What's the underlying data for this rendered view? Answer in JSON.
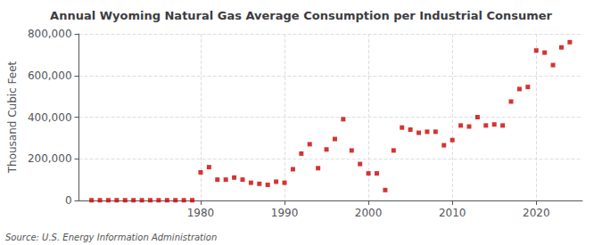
{
  "chart_data": {
    "type": "scatter",
    "title": "Annual Wyoming Natural Gas Average Consumption per Industrial Consumer",
    "ylabel": "Thousand Cubic Feet",
    "annotation": "Source: U.S. Energy Information Administration",
    "x": [
      1967,
      1968,
      1969,
      1970,
      1971,
      1972,
      1973,
      1974,
      1975,
      1976,
      1977,
      1978,
      1979,
      1980,
      1981,
      1982,
      1983,
      1984,
      1985,
      1986,
      1987,
      1988,
      1989,
      1990,
      1991,
      1992,
      1993,
      1994,
      1995,
      1996,
      1997,
      1998,
      1999,
      2000,
      2001,
      2002,
      2003,
      2004,
      2005,
      2006,
      2007,
      2008,
      2009,
      2010,
      2011,
      2012,
      2013,
      2014,
      2015,
      2016,
      2017,
      2018,
      2019,
      2020,
      2021,
      2022,
      2023,
      2024
    ],
    "values": [
      1000,
      1000,
      1000,
      1000,
      1000,
      1000,
      1000,
      1000,
      1000,
      1000,
      1000,
      1000,
      1000,
      135000,
      160000,
      100000,
      100000,
      110000,
      100000,
      85000,
      80000,
      75000,
      90000,
      85000,
      150000,
      225000,
      270000,
      155000,
      245000,
      295000,
      390000,
      240000,
      175000,
      130000,
      130000,
      50000,
      240000,
      350000,
      340000,
      325000,
      330000,
      330000,
      265000,
      290000,
      360000,
      355000,
      400000,
      360000,
      365000,
      360000,
      475000,
      535000,
      545000,
      720000,
      710000,
      650000,
      735000,
      760000
    ],
    "color": "#cc0000",
    "marker": "square",
    "xlim": [
      1965.5,
      2025.5
    ],
    "xticks": [
      1980,
      1990,
      2000,
      2010,
      2020
    ],
    "ylim": [
      0,
      800000
    ],
    "yticks": [
      0,
      {
        "value": 200000,
        "label": "200,000"
      },
      {
        "value": 400000,
        "label": "400,000"
      },
      {
        "value": 600000,
        "label": "600,000"
      },
      {
        "value": 800000,
        "label": "800,000"
      }
    ],
    "grid": true
  }
}
